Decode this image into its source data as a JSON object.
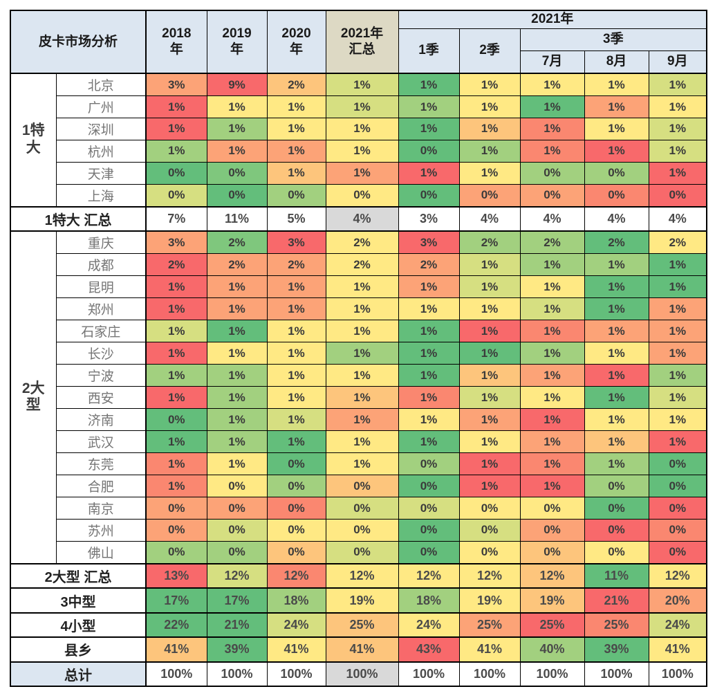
{
  "header": {
    "corner": "皮卡市场分析",
    "years": [
      "2018年",
      "2019年",
      "2020年"
    ],
    "total_col": "2021年汇总",
    "year_group": "2021年",
    "quarters": [
      "1季",
      "2季"
    ],
    "q3": "3季",
    "months": [
      "7月",
      "8月",
      "9月"
    ]
  },
  "palette": {
    "r": "#F8696B",
    "ro": "#FA8770",
    "o": "#FCA377",
    "lo": "#FDC57C",
    "y": "#FFE984",
    "yg": "#D6DF81",
    "lg": "#A2D07F",
    "mg": "#7FC77D",
    "g": "#63BE7B",
    "gy": "#D9D9D9",
    "w": "#FFFFFF"
  },
  "chart_data": {
    "type": "heatmap",
    "title": "皮卡市场分析",
    "unit": "%",
    "legend_position": "none",
    "columns": [
      "2018年",
      "2019年",
      "2020年",
      "2021年汇总",
      "2021年1季",
      "2021年2季",
      "2021年7月",
      "2021年8月",
      "2021年9月"
    ],
    "rows": [
      {
        "group": "1特大",
        "label": "北京",
        "values": [
          3,
          9,
          2,
          1,
          1,
          1,
          1,
          1,
          1
        ]
      },
      {
        "group": "1特大",
        "label": "广州",
        "values": [
          1,
          1,
          1,
          1,
          1,
          1,
          1,
          1,
          1
        ]
      },
      {
        "group": "1特大",
        "label": "深圳",
        "values": [
          1,
          1,
          1,
          1,
          1,
          1,
          1,
          1,
          1
        ]
      },
      {
        "group": "1特大",
        "label": "杭州",
        "values": [
          1,
          1,
          1,
          1,
          0,
          1,
          1,
          1,
          1
        ]
      },
      {
        "group": "1特大",
        "label": "天津",
        "values": [
          0,
          0,
          1,
          1,
          1,
          1,
          0,
          0,
          1
        ]
      },
      {
        "group": "1特大",
        "label": "上海",
        "values": [
          0,
          0,
          0,
          0,
          0,
          0,
          0,
          0,
          0
        ]
      },
      {
        "group": null,
        "label": "1特大 汇总",
        "values": [
          7,
          11,
          5,
          4,
          3,
          4,
          4,
          4,
          4
        ]
      },
      {
        "group": "2大型",
        "label": "重庆",
        "values": [
          3,
          2,
          3,
          2,
          3,
          2,
          2,
          2,
          2
        ]
      },
      {
        "group": "2大型",
        "label": "成都",
        "values": [
          2,
          2,
          2,
          2,
          2,
          1,
          1,
          1,
          1
        ]
      },
      {
        "group": "2大型",
        "label": "昆明",
        "values": [
          1,
          1,
          1,
          1,
          1,
          1,
          1,
          1,
          1
        ]
      },
      {
        "group": "2大型",
        "label": "郑州",
        "values": [
          1,
          1,
          1,
          1,
          1,
          1,
          1,
          1,
          1
        ]
      },
      {
        "group": "2大型",
        "label": "石家庄",
        "values": [
          1,
          1,
          1,
          1,
          1,
          1,
          1,
          1,
          1
        ]
      },
      {
        "group": "2大型",
        "label": "长沙",
        "values": [
          1,
          1,
          1,
          1,
          1,
          1,
          1,
          1,
          1
        ]
      },
      {
        "group": "2大型",
        "label": "宁波",
        "values": [
          1,
          1,
          1,
          1,
          1,
          1,
          1,
          1,
          1
        ]
      },
      {
        "group": "2大型",
        "label": "西安",
        "values": [
          1,
          1,
          1,
          1,
          1,
          1,
          1,
          1,
          1
        ]
      },
      {
        "group": "2大型",
        "label": "济南",
        "values": [
          0,
          1,
          1,
          1,
          1,
          1,
          1,
          1,
          1
        ]
      },
      {
        "group": "2大型",
        "label": "武汉",
        "values": [
          1,
          1,
          1,
          1,
          1,
          1,
          1,
          1,
          1
        ]
      },
      {
        "group": "2大型",
        "label": "东莞",
        "values": [
          1,
          1,
          0,
          1,
          0,
          1,
          1,
          1,
          0
        ]
      },
      {
        "group": "2大型",
        "label": "合肥",
        "values": [
          1,
          0,
          0,
          0,
          0,
          1,
          1,
          0,
          0
        ]
      },
      {
        "group": "2大型",
        "label": "南京",
        "values": [
          0,
          0,
          0,
          0,
          0,
          0,
          0,
          0,
          0
        ]
      },
      {
        "group": "2大型",
        "label": "苏州",
        "values": [
          0,
          0,
          0,
          0,
          0,
          0,
          0,
          0,
          0
        ]
      },
      {
        "group": "2大型",
        "label": "佛山",
        "values": [
          0,
          0,
          0,
          0,
          0,
          0,
          0,
          0,
          0
        ]
      },
      {
        "group": null,
        "label": "2大型 汇总",
        "values": [
          13,
          12,
          12,
          12,
          12,
          12,
          12,
          11,
          12
        ]
      },
      {
        "group": null,
        "label": "3中型",
        "values": [
          17,
          17,
          18,
          19,
          18,
          19,
          19,
          21,
          20
        ]
      },
      {
        "group": null,
        "label": "4小型",
        "values": [
          22,
          21,
          24,
          25,
          24,
          25,
          25,
          25,
          24
        ]
      },
      {
        "group": null,
        "label": "县乡",
        "values": [
          41,
          39,
          41,
          41,
          43,
          41,
          40,
          39,
          41
        ]
      },
      {
        "group": null,
        "label": "总计",
        "values": [
          100,
          100,
          100,
          100,
          100,
          100,
          100,
          100,
          100
        ]
      }
    ]
  },
  "table": {
    "row_meta": [
      {
        "type": "city",
        "group_start": {
          "label": "1特大",
          "span": 6
        },
        "colors": [
          "o",
          "r",
          "lo",
          "yg",
          "g",
          "y",
          "y",
          "y",
          "yg"
        ]
      },
      {
        "type": "city",
        "colors": [
          "r",
          "y",
          "y",
          "yg",
          "lg",
          "y",
          "g",
          "o",
          "y"
        ]
      },
      {
        "type": "city",
        "colors": [
          "r",
          "lg",
          "y",
          "y",
          "g",
          "lo",
          "ro",
          "y",
          "yg"
        ]
      },
      {
        "type": "city",
        "colors": [
          "lg",
          "o",
          "o",
          "y",
          "g",
          "lg",
          "ro",
          "r",
          "yg"
        ]
      },
      {
        "type": "city",
        "colors": [
          "g",
          "mg",
          "lo",
          "o",
          "r",
          "y",
          "lg",
          "lg",
          "r"
        ]
      },
      {
        "type": "city",
        "colors": [
          "yg",
          "g",
          "lg",
          "y",
          "g",
          "o",
          "o",
          "ro",
          "r"
        ]
      },
      {
        "type": "summary",
        "colors": [
          "w",
          "w",
          "w",
          "gy",
          "w",
          "w",
          "w",
          "w",
          "w"
        ]
      },
      {
        "type": "city",
        "group_start": {
          "label": "2大型",
          "span": 15
        },
        "colors": [
          "o",
          "mg",
          "r",
          "y",
          "r",
          "lg",
          "lg",
          "g",
          "y"
        ]
      },
      {
        "type": "city",
        "colors": [
          "r",
          "o",
          "o",
          "y",
          "o",
          "yg",
          "lg",
          "lg",
          "g"
        ]
      },
      {
        "type": "city",
        "colors": [
          "r",
          "o",
          "o",
          "y",
          "o",
          "yg",
          "y",
          "g",
          "g"
        ]
      },
      {
        "type": "city",
        "colors": [
          "r",
          "o",
          "o",
          "y",
          "y",
          "y",
          "yg",
          "g",
          "o"
        ]
      },
      {
        "type": "city",
        "colors": [
          "yg",
          "g",
          "y",
          "y",
          "g",
          "r",
          "ro",
          "o",
          "o"
        ]
      },
      {
        "type": "city",
        "colors": [
          "r",
          "y",
          "y",
          "lg",
          "g",
          "g",
          "lg",
          "y",
          "o"
        ]
      },
      {
        "type": "city",
        "colors": [
          "lg",
          "lg",
          "y",
          "y",
          "g",
          "lo",
          "o",
          "r",
          "lg"
        ]
      },
      {
        "type": "city",
        "colors": [
          "r",
          "lg",
          "y",
          "lo",
          "ro",
          "yg",
          "y",
          "g",
          "yg"
        ]
      },
      {
        "type": "city",
        "colors": [
          "g",
          "lg",
          "yg",
          "o",
          "y",
          "o",
          "r",
          "y",
          "y"
        ]
      },
      {
        "type": "city",
        "colors": [
          "g",
          "lg",
          "g",
          "y",
          "g",
          "y",
          "o",
          "lo",
          "r"
        ]
      },
      {
        "type": "city",
        "colors": [
          "ro",
          "y",
          "g",
          "y",
          "lg",
          "r",
          "ro",
          "lg",
          "g"
        ]
      },
      {
        "type": "city",
        "colors": [
          "ro",
          "y",
          "lg",
          "lo",
          "g",
          "r",
          "r",
          "lg",
          "g"
        ]
      },
      {
        "type": "city",
        "colors": [
          "o",
          "o",
          "ro",
          "yg",
          "yg",
          "y",
          "y",
          "g",
          "r"
        ]
      },
      {
        "type": "city",
        "colors": [
          "o",
          "yg",
          "y",
          "y",
          "g",
          "yg",
          "o",
          "r",
          "ro"
        ]
      },
      {
        "type": "city",
        "colors": [
          "lg",
          "lg",
          "lo",
          "yg",
          "g",
          "y",
          "lo",
          "y",
          "r"
        ]
      },
      {
        "type": "summary",
        "colors": [
          "r",
          "yg",
          "ro",
          "y",
          "y",
          "y",
          "lo",
          "g",
          "y"
        ]
      },
      {
        "type": "summary",
        "colors": [
          "g",
          "g",
          "lg",
          "y",
          "lg",
          "y",
          "lo",
          "r",
          "o"
        ]
      },
      {
        "type": "summary",
        "colors": [
          "g",
          "g",
          "yg",
          "lo",
          "y",
          "o",
          "r",
          "ro",
          "yg"
        ]
      },
      {
        "type": "summary",
        "colors": [
          "lo",
          "g",
          "y",
          "lo",
          "r",
          "y",
          "lg",
          "g",
          "y"
        ]
      },
      {
        "type": "total",
        "colors": [
          "w",
          "w",
          "w",
          "gy",
          "w",
          "w",
          "w",
          "w",
          "w"
        ]
      }
    ]
  }
}
